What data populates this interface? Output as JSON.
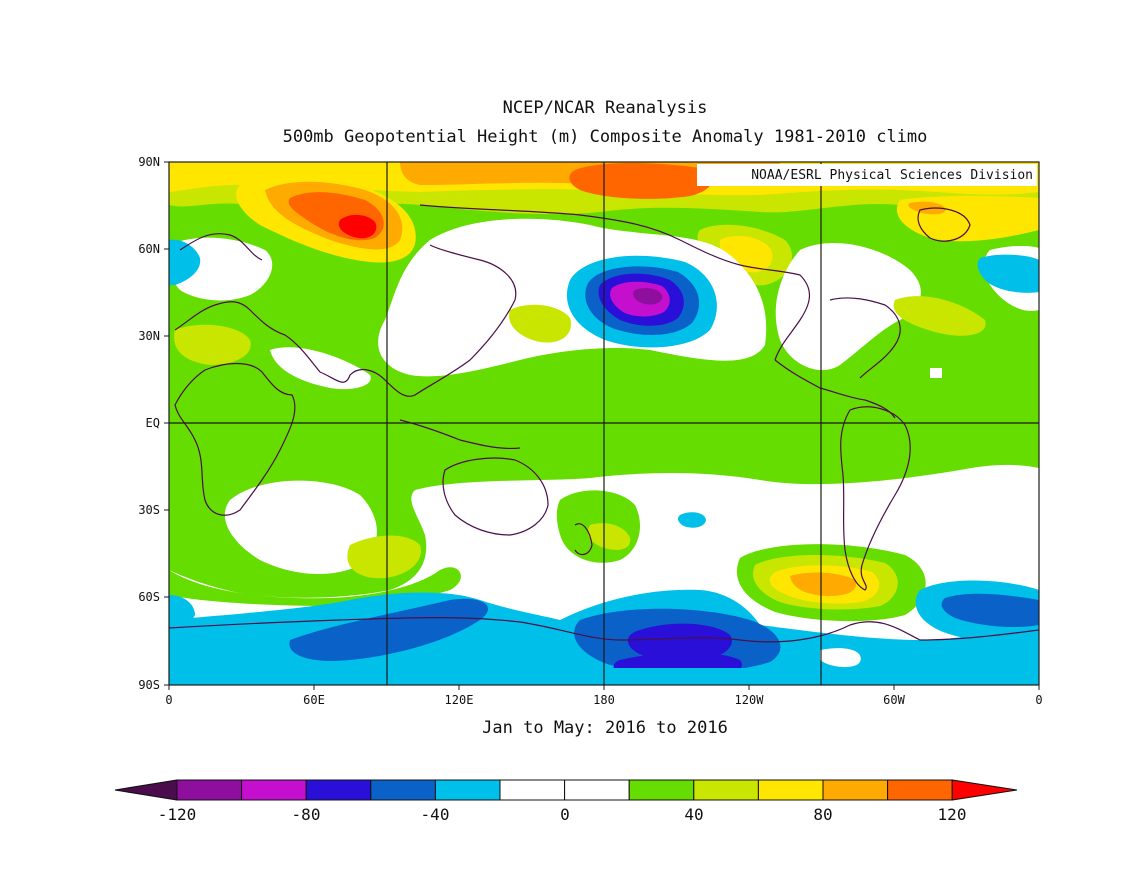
{
  "title_line1": "NCEP/NCAR Reanalysis",
  "title_line2": "500mb Geopotential Height (m) Composite Anomaly 1981-2010 climo",
  "credit": "NOAA/ESRL Physical Sciences Division",
  "subtitle": "Jan to May: 2016 to 2016",
  "lat_labels": [
    "90N",
    "60N",
    "30N",
    "EQ",
    "30S",
    "60S",
    "90S"
  ],
  "lon_labels": [
    "0",
    "60E",
    "120E",
    "180",
    "120W",
    "60W",
    "0"
  ],
  "colorbar": {
    "labels": [
      "-120",
      "-80",
      "-40",
      "0",
      "40",
      "80",
      "120"
    ],
    "colors": [
      "#4a0c4a",
      "#8e0f9e",
      "#c40fce",
      "#2a0fd8",
      "#0a62c8",
      "#00c0ea",
      "#ffffff",
      "#ffffff",
      "#66dd00",
      "#c8e600",
      "#ffe600",
      "#ffaa00",
      "#ff6600",
      "#ff0000"
    ]
  }
}
